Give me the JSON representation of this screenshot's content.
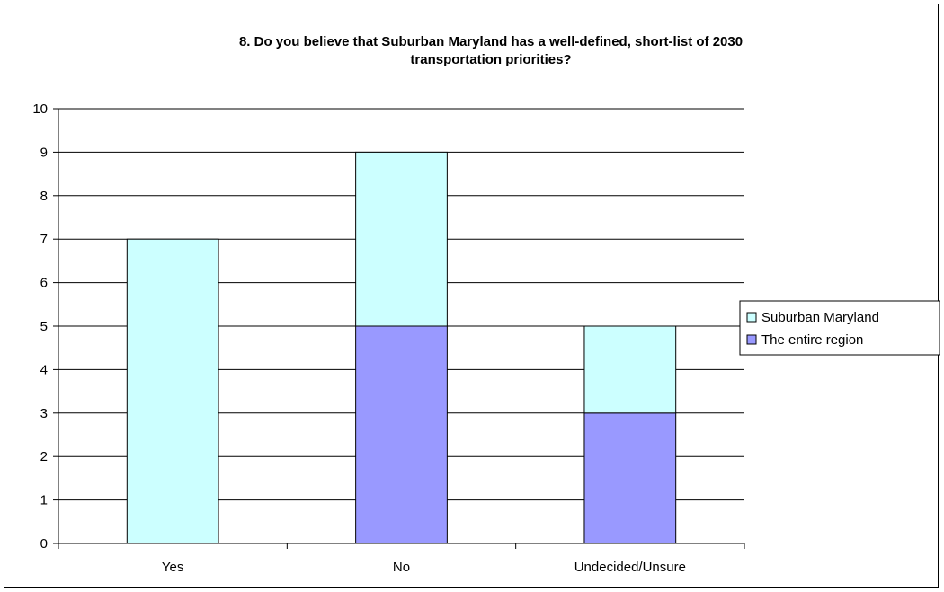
{
  "chart_data": {
    "type": "bar",
    "stacked": true,
    "title_lines": [
      "8. Do you believe that Suburban Maryland has a well-defined, short-list of 2030",
      "transportation priorities?"
    ],
    "xlabel": "",
    "ylabel": "",
    "categories": [
      "Yes",
      "No",
      "Undecided/Unsure"
    ],
    "series": [
      {
        "name": "The entire region",
        "values": [
          0,
          5,
          3
        ],
        "color": "#9999ff"
      },
      {
        "name": "Suburban Maryland",
        "values": [
          7,
          4,
          2
        ],
        "color": "#ccffff"
      }
    ],
    "legend_order": [
      1,
      0
    ],
    "ylim": [
      0,
      10
    ],
    "yticks": [
      0,
      1,
      2,
      3,
      4,
      5,
      6,
      7,
      8,
      9,
      10
    ],
    "grid": true,
    "legend_position": "right"
  }
}
